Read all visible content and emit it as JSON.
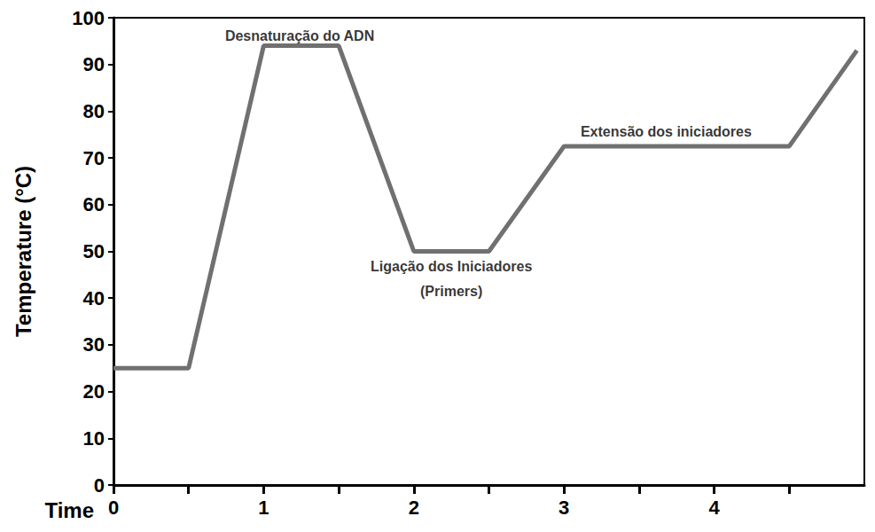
{
  "chart_data": {
    "type": "line",
    "x_label": "Time",
    "y_label": "Temperature (°C)",
    "x": [
      0,
      0.5,
      1,
      1.5,
      2,
      2.5,
      3,
      4.5,
      4.95
    ],
    "values": [
      25,
      25,
      94,
      94,
      50,
      50,
      72.5,
      72.5,
      93
    ],
    "color": "#707070",
    "xlim": [
      0,
      5
    ],
    "xticks": [
      0,
      1,
      2,
      3,
      4
    ],
    "ylim": [
      0,
      100
    ],
    "yticks": [
      0,
      10,
      20,
      30,
      40,
      50,
      60,
      70,
      80,
      90,
      100
    ],
    "grid": false,
    "annotations": [
      {
        "text": "Desnaturação do ADN",
        "x": 1.24,
        "y": 96.2
      },
      {
        "text": "Ligação dos Iniciadores\n(Primers)",
        "x": 2.25,
        "y": 44.2
      },
      {
        "text": "Extensão dos iniciadores",
        "x": 3.68,
        "y": 75.7
      }
    ]
  }
}
